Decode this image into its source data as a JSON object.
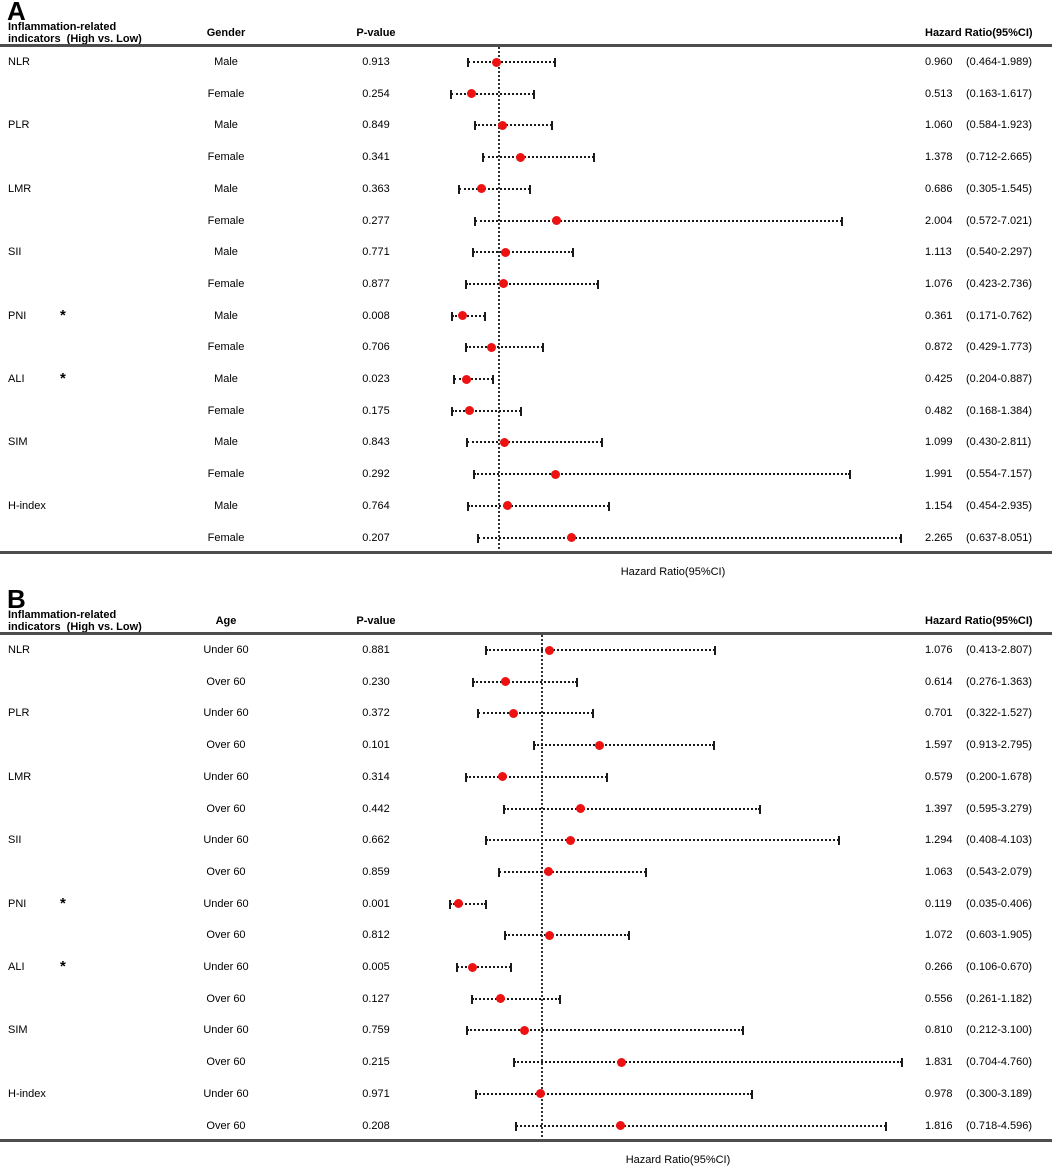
{
  "figure": {
    "background": "#ffffff",
    "marker_color": "#ee1111",
    "line_color": "#1a1a1a",
    "rule_color": "#4d4d4d",
    "significance_marker": "*"
  },
  "chart_data": [
    {
      "type": "forest",
      "panel_label": "A",
      "col_indicator_header_line1": "Inflammation-related",
      "col_indicator_header_line2": "indicators  (High vs. Low)",
      "col_group_header": "Gender",
      "col_pvalue_header": "P-value",
      "col_hr_header": "Hazard Ratio(95%CI)",
      "xlabel": "Hazard Ratio(95%CI)",
      "reference_line_x": 1.0,
      "xlim": [
        0,
        8.105
      ],
      "grid": false,
      "rows": [
        {
          "indicator": "NLR",
          "sig": false,
          "group": "Male",
          "p": "0.913",
          "est": 0.96,
          "lo": 0.464,
          "hi": 1.989
        },
        {
          "indicator": "",
          "sig": false,
          "group": "Female",
          "p": "0.254",
          "est": 0.513,
          "lo": 0.163,
          "hi": 1.617
        },
        {
          "indicator": "PLR",
          "sig": false,
          "group": "Male",
          "p": "0.849",
          "est": 1.06,
          "lo": 0.584,
          "hi": 1.923
        },
        {
          "indicator": "",
          "sig": false,
          "group": "Female",
          "p": "0.341",
          "est": 1.378,
          "lo": 0.712,
          "hi": 2.665
        },
        {
          "indicator": "LMR",
          "sig": false,
          "group": "Male",
          "p": "0.363",
          "est": 0.686,
          "lo": 0.305,
          "hi": 1.545
        },
        {
          "indicator": "",
          "sig": false,
          "group": "Female",
          "p": "0.277",
          "est": 2.004,
          "lo": 0.572,
          "hi": 7.021
        },
        {
          "indicator": "SII",
          "sig": false,
          "group": "Male",
          "p": "0.771",
          "est": 1.113,
          "lo": 0.54,
          "hi": 2.297
        },
        {
          "indicator": "",
          "sig": false,
          "group": "Female",
          "p": "0.877",
          "est": 1.076,
          "lo": 0.423,
          "hi": 2.736
        },
        {
          "indicator": "PNI",
          "sig": true,
          "group": "Male",
          "p": "0.008",
          "est": 0.361,
          "lo": 0.171,
          "hi": 0.762
        },
        {
          "indicator": "",
          "sig": false,
          "group": "Female",
          "p": "0.706",
          "est": 0.872,
          "lo": 0.429,
          "hi": 1.773
        },
        {
          "indicator": "ALI",
          "sig": true,
          "group": "Male",
          "p": "0.023",
          "est": 0.425,
          "lo": 0.204,
          "hi": 0.887
        },
        {
          "indicator": "",
          "sig": false,
          "group": "Female",
          "p": "0.175",
          "est": 0.482,
          "lo": 0.168,
          "hi": 1.384
        },
        {
          "indicator": "SIM",
          "sig": false,
          "group": "Male",
          "p": "0.843",
          "est": 1.099,
          "lo": 0.43,
          "hi": 2.811
        },
        {
          "indicator": "",
          "sig": false,
          "group": "Female",
          "p": "0.292",
          "est": 1.991,
          "lo": 0.554,
          "hi": 7.157
        },
        {
          "indicator": "H-index",
          "sig": false,
          "group": "Male",
          "p": "0.764",
          "est": 1.154,
          "lo": 0.454,
          "hi": 2.935
        },
        {
          "indicator": "",
          "sig": false,
          "group": "Female",
          "p": "0.207",
          "est": 2.265,
          "lo": 0.637,
          "hi": 8.051
        }
      ]
    },
    {
      "type": "forest",
      "panel_label": "B",
      "col_indicator_header_line1": "Inflammation-related",
      "col_indicator_header_line2": "indicators  (High vs. Low)",
      "col_group_header": "Age",
      "col_pvalue_header": "P-value",
      "col_hr_header": "Hazard Ratio(95%CI)",
      "xlabel": "Hazard Ratio(95%CI)",
      "reference_line_x": 1.0,
      "xlim": [
        0,
        4.838
      ],
      "grid": false,
      "rows": [
        {
          "indicator": "NLR",
          "sig": false,
          "group": "Under 60",
          "p": "0.881",
          "est": 1.076,
          "lo": 0.413,
          "hi": 2.807
        },
        {
          "indicator": "",
          "sig": false,
          "group": "Over 60",
          "p": "0.230",
          "est": 0.614,
          "lo": 0.276,
          "hi": 1.363
        },
        {
          "indicator": "PLR",
          "sig": false,
          "group": "Under 60",
          "p": "0.372",
          "est": 0.701,
          "lo": 0.322,
          "hi": 1.527
        },
        {
          "indicator": "",
          "sig": false,
          "group": "Over 60",
          "p": "0.101",
          "est": 1.597,
          "lo": 0.913,
          "hi": 2.795
        },
        {
          "indicator": "LMR",
          "sig": false,
          "group": "Under 60",
          "p": "0.314",
          "est": 0.579,
          "lo": 0.2,
          "hi": 1.678
        },
        {
          "indicator": "",
          "sig": false,
          "group": "Over 60",
          "p": "0.442",
          "est": 1.397,
          "lo": 0.595,
          "hi": 3.279
        },
        {
          "indicator": "SII",
          "sig": false,
          "group": "Under 60",
          "p": "0.662",
          "est": 1.294,
          "lo": 0.408,
          "hi": 4.103
        },
        {
          "indicator": "",
          "sig": false,
          "group": "Over 60",
          "p": "0.859",
          "est": 1.063,
          "lo": 0.543,
          "hi": 2.079
        },
        {
          "indicator": "PNI",
          "sig": true,
          "group": "Under 60",
          "p": "0.001",
          "est": 0.119,
          "lo": 0.035,
          "hi": 0.406
        },
        {
          "indicator": "",
          "sig": false,
          "group": "Over 60",
          "p": "0.812",
          "est": 1.072,
          "lo": 0.603,
          "hi": 1.905
        },
        {
          "indicator": "ALI",
          "sig": true,
          "group": "Under 60",
          "p": "0.005",
          "est": 0.266,
          "lo": 0.106,
          "hi": 0.67
        },
        {
          "indicator": "",
          "sig": false,
          "group": "Over 60",
          "p": "0.127",
          "est": 0.556,
          "lo": 0.261,
          "hi": 1.182
        },
        {
          "indicator": "SIM",
          "sig": false,
          "group": "Under 60",
          "p": "0.759",
          "est": 0.81,
          "lo": 0.212,
          "hi": 3.1
        },
        {
          "indicator": "",
          "sig": false,
          "group": "Over 60",
          "p": "0.215",
          "est": 1.831,
          "lo": 0.704,
          "hi": 4.76
        },
        {
          "indicator": "H-index",
          "sig": false,
          "group": "Under 60",
          "p": "0.971",
          "est": 0.978,
          "lo": 0.3,
          "hi": 3.189
        },
        {
          "indicator": "",
          "sig": false,
          "group": "Over 60",
          "p": "0.208",
          "est": 1.816,
          "lo": 0.718,
          "hi": 4.596
        }
      ]
    }
  ]
}
